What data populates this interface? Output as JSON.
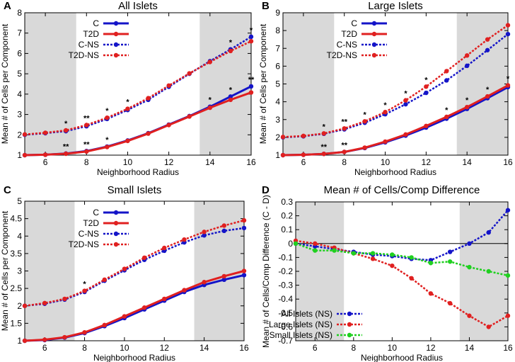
{
  "chart_data": [
    {
      "type": "line",
      "letter": "A",
      "title": "All Islets",
      "xlabel": "Neighborhood Radius",
      "ylabel": "Mean # of Cells per Component",
      "xlim": [
        5,
        16
      ],
      "ylim": [
        1,
        8
      ],
      "xticks": [
        6,
        8,
        10,
        12,
        14,
        16
      ],
      "yticks": [
        1,
        2,
        3,
        4,
        5,
        6,
        7,
        8
      ],
      "shaded_x": [
        [
          5,
          7.5
        ],
        [
          13.5,
          16
        ]
      ],
      "legend_position": "top-left",
      "x": [
        5,
        6,
        7,
        8,
        9,
        10,
        11,
        12,
        13,
        14,
        15,
        16
      ],
      "series": [
        {
          "name": "C",
          "style": "solid",
          "color": "#1414c8",
          "values": [
            1.0,
            1.02,
            1.08,
            1.2,
            1.42,
            1.72,
            2.08,
            2.5,
            2.92,
            3.38,
            3.88,
            4.38
          ]
        },
        {
          "name": "T2D",
          "style": "solid",
          "color": "#e02020",
          "values": [
            1.0,
            1.02,
            1.07,
            1.18,
            1.4,
            1.7,
            2.06,
            2.48,
            2.9,
            3.33,
            3.72,
            4.08
          ]
        },
        {
          "name": "C-NS",
          "style": "dotted",
          "color": "#1414c8",
          "values": [
            2.0,
            2.08,
            2.18,
            2.42,
            2.78,
            3.22,
            3.72,
            4.36,
            5.0,
            5.62,
            6.2,
            6.82
          ]
        },
        {
          "name": "T2D-NS",
          "style": "dotted",
          "color": "#e02020",
          "values": [
            2.02,
            2.1,
            2.22,
            2.48,
            2.84,
            3.28,
            3.8,
            4.42,
            5.02,
            5.58,
            6.12,
            6.6
          ]
        }
      ],
      "annotations": [
        {
          "x": 7,
          "y": 1.08,
          "text": "**"
        },
        {
          "x": 8,
          "y": 1.2,
          "text": "**"
        },
        {
          "x": 9,
          "y": 1.42,
          "text": "*"
        },
        {
          "x": 14,
          "y": 3.38,
          "text": "*"
        },
        {
          "x": 15,
          "y": 3.88,
          "text": "*"
        },
        {
          "x": 16,
          "y": 4.38,
          "text": "**"
        },
        {
          "x": 7,
          "y": 2.22,
          "text": "*"
        },
        {
          "x": 8,
          "y": 2.48,
          "text": "**"
        },
        {
          "x": 9,
          "y": 2.84,
          "text": "*"
        },
        {
          "x": 10,
          "y": 3.28,
          "text": "*"
        },
        {
          "x": 15,
          "y": 6.2,
          "text": "*"
        },
        {
          "x": 16,
          "y": 6.82,
          "text": "*"
        }
      ]
    },
    {
      "type": "line",
      "letter": "B",
      "title": "Large Islets",
      "xlabel": "Neighborhood Radius",
      "ylabel": "Mean # of Cells per Component",
      "xlim": [
        5,
        16
      ],
      "ylim": [
        1,
        9
      ],
      "xticks": [
        6,
        8,
        10,
        12,
        14,
        16
      ],
      "yticks": [
        1,
        2,
        3,
        4,
        5,
        6,
        7,
        8,
        9
      ],
      "shaded_x": [
        [
          5,
          7.5
        ],
        [
          13.5,
          16
        ]
      ],
      "legend_position": "top-left",
      "x": [
        5,
        6,
        7,
        8,
        9,
        10,
        11,
        12,
        13,
        14,
        15,
        16
      ],
      "series": [
        {
          "name": "C",
          "style": "solid",
          "color": "#1414c8",
          "values": [
            1.0,
            1.02,
            1.07,
            1.18,
            1.4,
            1.72,
            2.1,
            2.55,
            3.05,
            3.6,
            4.2,
            4.82
          ]
        },
        {
          "name": "T2D",
          "style": "solid",
          "color": "#e02020",
          "values": [
            1.0,
            1.02,
            1.07,
            1.18,
            1.42,
            1.76,
            2.16,
            2.64,
            3.15,
            3.7,
            4.3,
            4.92
          ]
        },
        {
          "name": "C-NS",
          "style": "dotted",
          "color": "#1414c8",
          "values": [
            2.0,
            2.06,
            2.2,
            2.45,
            2.82,
            3.3,
            3.86,
            4.5,
            5.2,
            6.02,
            6.9,
            7.8
          ]
        },
        {
          "name": "T2D-NS",
          "style": "dotted",
          "color": "#e02020",
          "values": [
            2.02,
            2.08,
            2.22,
            2.5,
            2.9,
            3.42,
            4.08,
            4.85,
            5.72,
            6.6,
            7.5,
            8.3
          ]
        }
      ],
      "annotations": [
        {
          "x": 7,
          "y": 1.07,
          "text": "**"
        },
        {
          "x": 8,
          "y": 1.18,
          "text": "**"
        },
        {
          "x": 13,
          "y": 3.15,
          "text": "*"
        },
        {
          "x": 14,
          "y": 3.7,
          "text": "*"
        },
        {
          "x": 15,
          "y": 4.3,
          "text": "*"
        },
        {
          "x": 16,
          "y": 4.92,
          "text": "*"
        },
        {
          "x": 7,
          "y": 2.22,
          "text": "*"
        },
        {
          "x": 8,
          "y": 2.5,
          "text": "**"
        },
        {
          "x": 9,
          "y": 2.9,
          "text": "*"
        },
        {
          "x": 10,
          "y": 3.42,
          "text": "*"
        },
        {
          "x": 11,
          "y": 4.08,
          "text": "*"
        },
        {
          "x": 12,
          "y": 4.85,
          "text": "*"
        }
      ]
    },
    {
      "type": "line",
      "letter": "C",
      "title": "Small Islets",
      "xlabel": "Neighborhood Radius",
      "ylabel": "Mean # of Cells per Component",
      "xlim": [
        5,
        16
      ],
      "ylim": [
        1,
        5
      ],
      "xticks": [
        6,
        8,
        10,
        12,
        14,
        16
      ],
      "yticks": [
        1,
        1.5,
        2,
        2.5,
        3,
        3.5,
        4,
        4.5,
        5
      ],
      "shaded_x": [
        [
          5,
          7.5
        ],
        [
          13.5,
          16
        ]
      ],
      "legend_position": "top-left",
      "x": [
        5,
        6,
        7,
        8,
        9,
        10,
        11,
        12,
        13,
        14,
        15,
        16
      ],
      "series": [
        {
          "name": "C",
          "style": "solid",
          "color": "#1414c8",
          "values": [
            1.0,
            1.02,
            1.09,
            1.22,
            1.42,
            1.65,
            1.9,
            2.15,
            2.4,
            2.6,
            2.75,
            2.88
          ]
        },
        {
          "name": "T2D",
          "style": "solid",
          "color": "#e02020",
          "values": [
            1.0,
            1.03,
            1.1,
            1.24,
            1.45,
            1.7,
            1.95,
            2.2,
            2.45,
            2.68,
            2.85,
            3.0
          ]
        },
        {
          "name": "C-NS",
          "style": "dotted",
          "color": "#1414c8",
          "values": [
            2.0,
            2.06,
            2.18,
            2.4,
            2.72,
            3.02,
            3.32,
            3.58,
            3.82,
            4.02,
            4.15,
            4.23
          ]
        },
        {
          "name": "T2D-NS",
          "style": "dotted",
          "color": "#e02020",
          "values": [
            2.0,
            2.08,
            2.2,
            2.43,
            2.75,
            3.06,
            3.38,
            3.66,
            3.9,
            4.12,
            4.3,
            4.45
          ]
        }
      ],
      "annotations": [
        {
          "x": 8,
          "y": 2.43,
          "text": "*"
        }
      ]
    },
    {
      "type": "line",
      "letter": "D",
      "title": "Mean # of Cells/Comp Difference",
      "xlabel": "Neighborhood Radius",
      "ylabel": "Mean # of Cells/Comp Difference (C - D)",
      "xlim": [
        5,
        16
      ],
      "ylim": [
        -0.7,
        0.3
      ],
      "xticks": [
        6,
        8,
        10,
        12,
        14,
        16
      ],
      "yticks": [
        -0.7,
        -0.6,
        -0.5,
        -0.4,
        -0.3,
        -0.2,
        -0.1,
        0,
        0.1,
        0.2,
        0.3
      ],
      "shaded_x": [
        [
          5,
          7.5
        ],
        [
          13.5,
          16
        ]
      ],
      "zero_line": true,
      "legend_position": "bottom-center",
      "x": [
        5,
        6,
        7,
        8,
        9,
        10,
        11,
        12,
        13,
        14,
        15,
        16
      ],
      "series": [
        {
          "name": "All Islets (NS)",
          "style": "dotted",
          "color": "#1414c8",
          "values": [
            0.0,
            -0.02,
            -0.04,
            -0.06,
            -0.08,
            -0.09,
            -0.11,
            -0.12,
            -0.06,
            0.0,
            0.08,
            0.24
          ]
        },
        {
          "name": "Large Islets (NS)",
          "style": "dotted",
          "color": "#e02020",
          "values": [
            0.02,
            0.0,
            -0.03,
            -0.07,
            -0.11,
            -0.16,
            -0.25,
            -0.36,
            -0.43,
            -0.52,
            -0.6,
            -0.52
          ]
        },
        {
          "name": "Small Islets (NS)",
          "style": "dotted",
          "color": "#20d020",
          "values": [
            0.0,
            -0.05,
            -0.05,
            -0.07,
            -0.07,
            -0.08,
            -0.1,
            -0.14,
            -0.13,
            -0.17,
            -0.2,
            -0.23
          ]
        }
      ]
    }
  ],
  "colors": {
    "shade": "#d9d9d9",
    "axis": "#000000",
    "blue": "#1414c8",
    "red": "#e02020",
    "green": "#20d020"
  }
}
